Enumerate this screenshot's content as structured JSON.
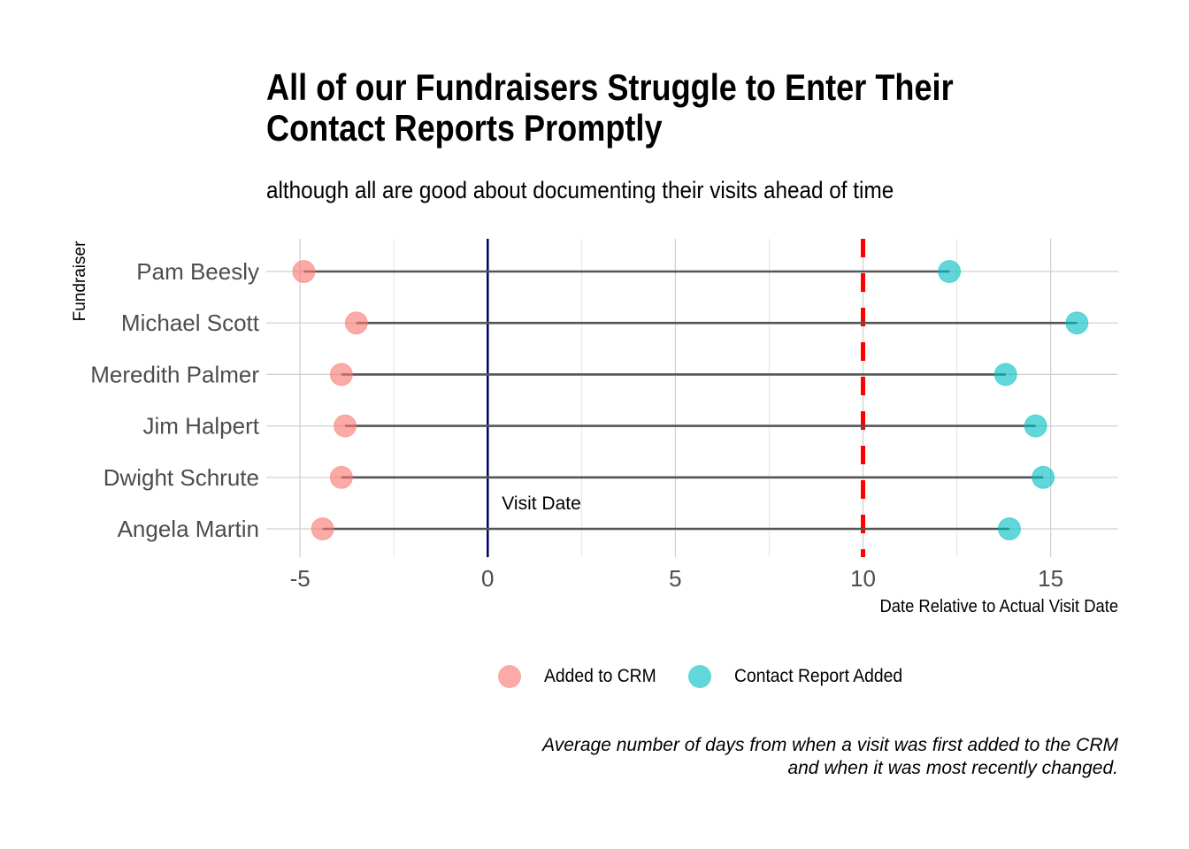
{
  "chart_data": {
    "type": "dumbbell",
    "title_lines": [
      "All of our Fundraisers Struggle to Enter Their",
      "Contact Reports Promptly"
    ],
    "subtitle": "although all are good about documenting their visits ahead of time",
    "xlabel": "Date Relative to Actual Visit Date",
    "ylabel": "Fundraiser",
    "xlim": [
      -5.9,
      16.8
    ],
    "xticks": [
      -5,
      0,
      5,
      10,
      15
    ],
    "xtick_labels": [
      "-5",
      "0",
      "5",
      "10",
      "15"
    ],
    "categories": [
      "Pam Beesly",
      "Michael Scott",
      "Meredith Palmer",
      "Jim Halpert",
      "Dwight Schrute",
      "Angela Martin"
    ],
    "series": [
      {
        "name": "Added to CRM",
        "color": "#F8766D",
        "values": [
          -4.9,
          -3.5,
          -3.9,
          -3.8,
          -3.9,
          -4.4
        ]
      },
      {
        "name": "Contact Report Added",
        "color": "#00BFC4",
        "values": [
          12.3,
          15.7,
          13.8,
          14.6,
          14.8,
          13.9
        ]
      }
    ],
    "reference_lines": [
      {
        "x": 0,
        "label": "Visit Date",
        "color": "#000066",
        "style": "solid"
      },
      {
        "x": 10,
        "label": "",
        "color": "#FF0000",
        "style": "dashed"
      }
    ],
    "caption_lines": [
      "Average number of days from when a visit was first added to the CRM",
      "and when it was most recently changed."
    ],
    "legend_position": "bottom",
    "grid": true
  }
}
